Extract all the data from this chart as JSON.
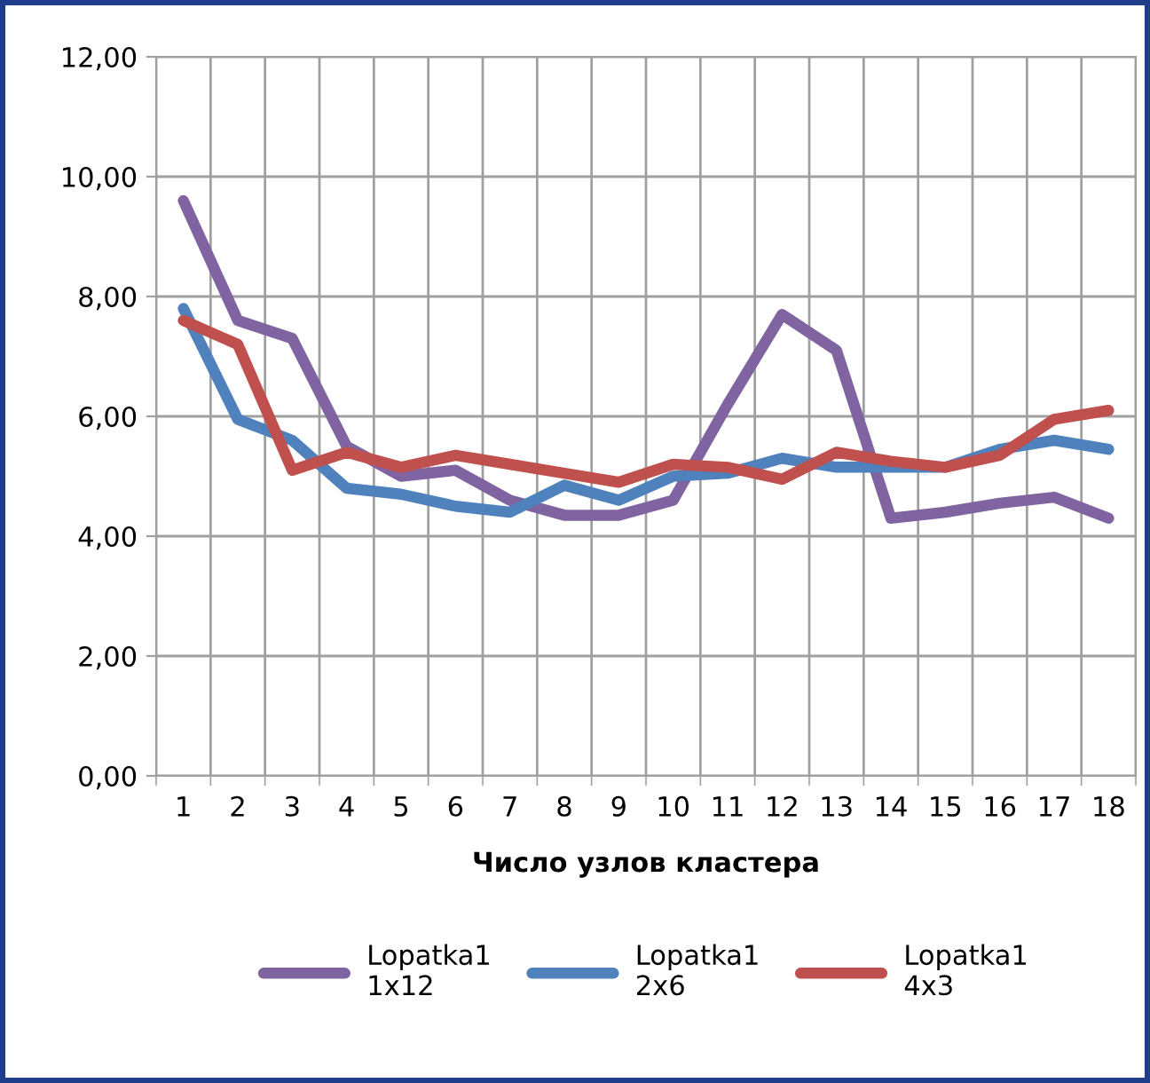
{
  "chart_data": {
    "type": "line",
    "xlabel": "Число узлов кластера",
    "categories": [
      "1",
      "2",
      "3",
      "4",
      "5",
      "6",
      "7",
      "8",
      "9",
      "10",
      "11",
      "12",
      "13",
      "14",
      "15",
      "16",
      "17",
      "18"
    ],
    "series": [
      {
        "name": "Lopatka1 1x12",
        "color": "#8064a2",
        "values": [
          9.6,
          7.6,
          7.3,
          5.5,
          5.0,
          5.1,
          4.6,
          4.35,
          4.35,
          4.6,
          6.2,
          7.7,
          7.1,
          4.3,
          4.4,
          4.55,
          4.65,
          4.3
        ]
      },
      {
        "name": "Lopatka1 2x6",
        "color": "#4f81bd",
        "values": [
          7.8,
          5.95,
          5.6,
          4.8,
          4.7,
          4.5,
          4.4,
          4.85,
          4.6,
          5.0,
          5.05,
          5.3,
          5.15,
          5.15,
          5.15,
          5.45,
          5.6,
          5.45
        ]
      },
      {
        "name": "Lopatka1 4x3",
        "color": "#c0504d",
        "values": [
          7.6,
          7.2,
          5.1,
          5.4,
          5.15,
          5.35,
          5.2,
          5.05,
          4.9,
          5.2,
          5.15,
          4.95,
          5.4,
          5.25,
          5.15,
          5.35,
          5.95,
          6.1
        ]
      }
    ],
    "ylim": [
      0,
      12
    ],
    "yticks": [
      {
        "value": 0,
        "label": "0,00"
      },
      {
        "value": 2,
        "label": "2,00"
      },
      {
        "value": 4,
        "label": "4,00"
      },
      {
        "value": 6,
        "label": "6,00"
      },
      {
        "value": 8,
        "label": "8,00"
      },
      {
        "value": 10,
        "label": "10,00"
      },
      {
        "value": 12,
        "label": "12,00"
      }
    ],
    "grid": true,
    "legend": "bottom",
    "marker": "none",
    "line_style": "solid"
  }
}
